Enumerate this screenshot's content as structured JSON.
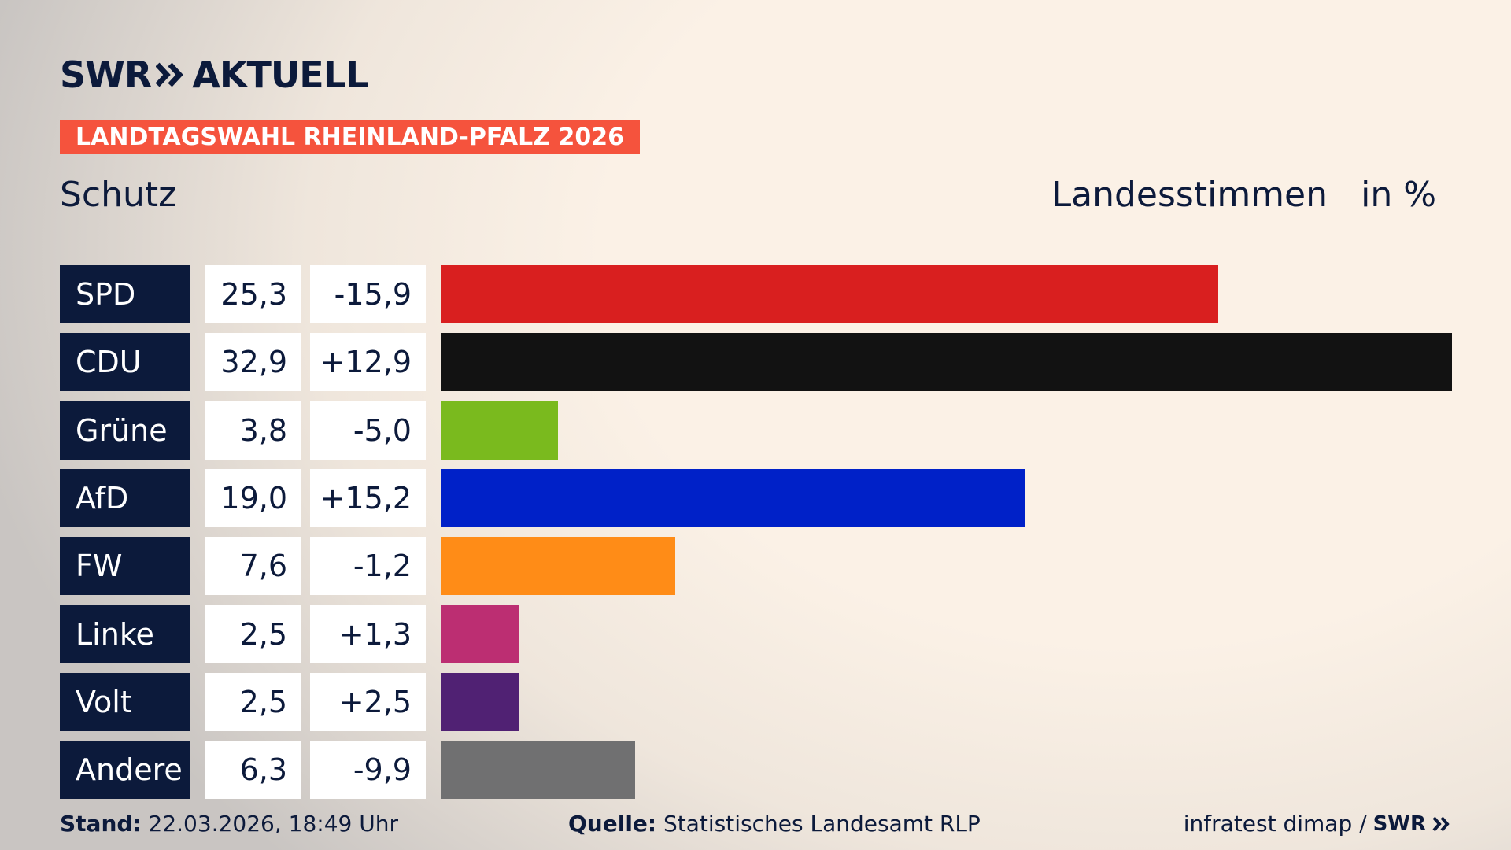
{
  "brand": {
    "name": "SWR",
    "product": "AKTUELL"
  },
  "banner": "LANDTAGSWAHL RHEINLAND-PFALZ 2026",
  "chart_data": {
    "type": "bar",
    "title": "Schutz",
    "subtitle": "Landesstimmen",
    "unit": "in %",
    "categories": [
      "SPD",
      "CDU",
      "Grüne",
      "AfD",
      "FW",
      "Linke",
      "Volt",
      "Andere"
    ],
    "values": [
      25.3,
      32.9,
      3.8,
      19.0,
      7.6,
      2.5,
      2.5,
      6.3
    ],
    "value_labels": [
      "25,3",
      "32,9",
      "3,8",
      "19,0",
      "7,6",
      "2,5",
      "2,5",
      "6,3"
    ],
    "change_labels": [
      "-15,9",
      "+12,9",
      "-5,0",
      "+15,2",
      "-1,2",
      "+1,3",
      "+2,5",
      "-9,9"
    ],
    "colors": [
      "#d91f1f",
      "#121212",
      "#7aba1e",
      "#0021c8",
      "#ff8c17",
      "#bc2e72",
      "#502173",
      "#707071"
    ]
  },
  "footer": {
    "stand_label": "Stand:",
    "stand": "22.03.2026, 18:49 Uhr",
    "source_label": "Quelle:",
    "source": "Statistisches Landesamt RLP",
    "credit": "infratest dimap /",
    "credit_brand": "SWR"
  }
}
